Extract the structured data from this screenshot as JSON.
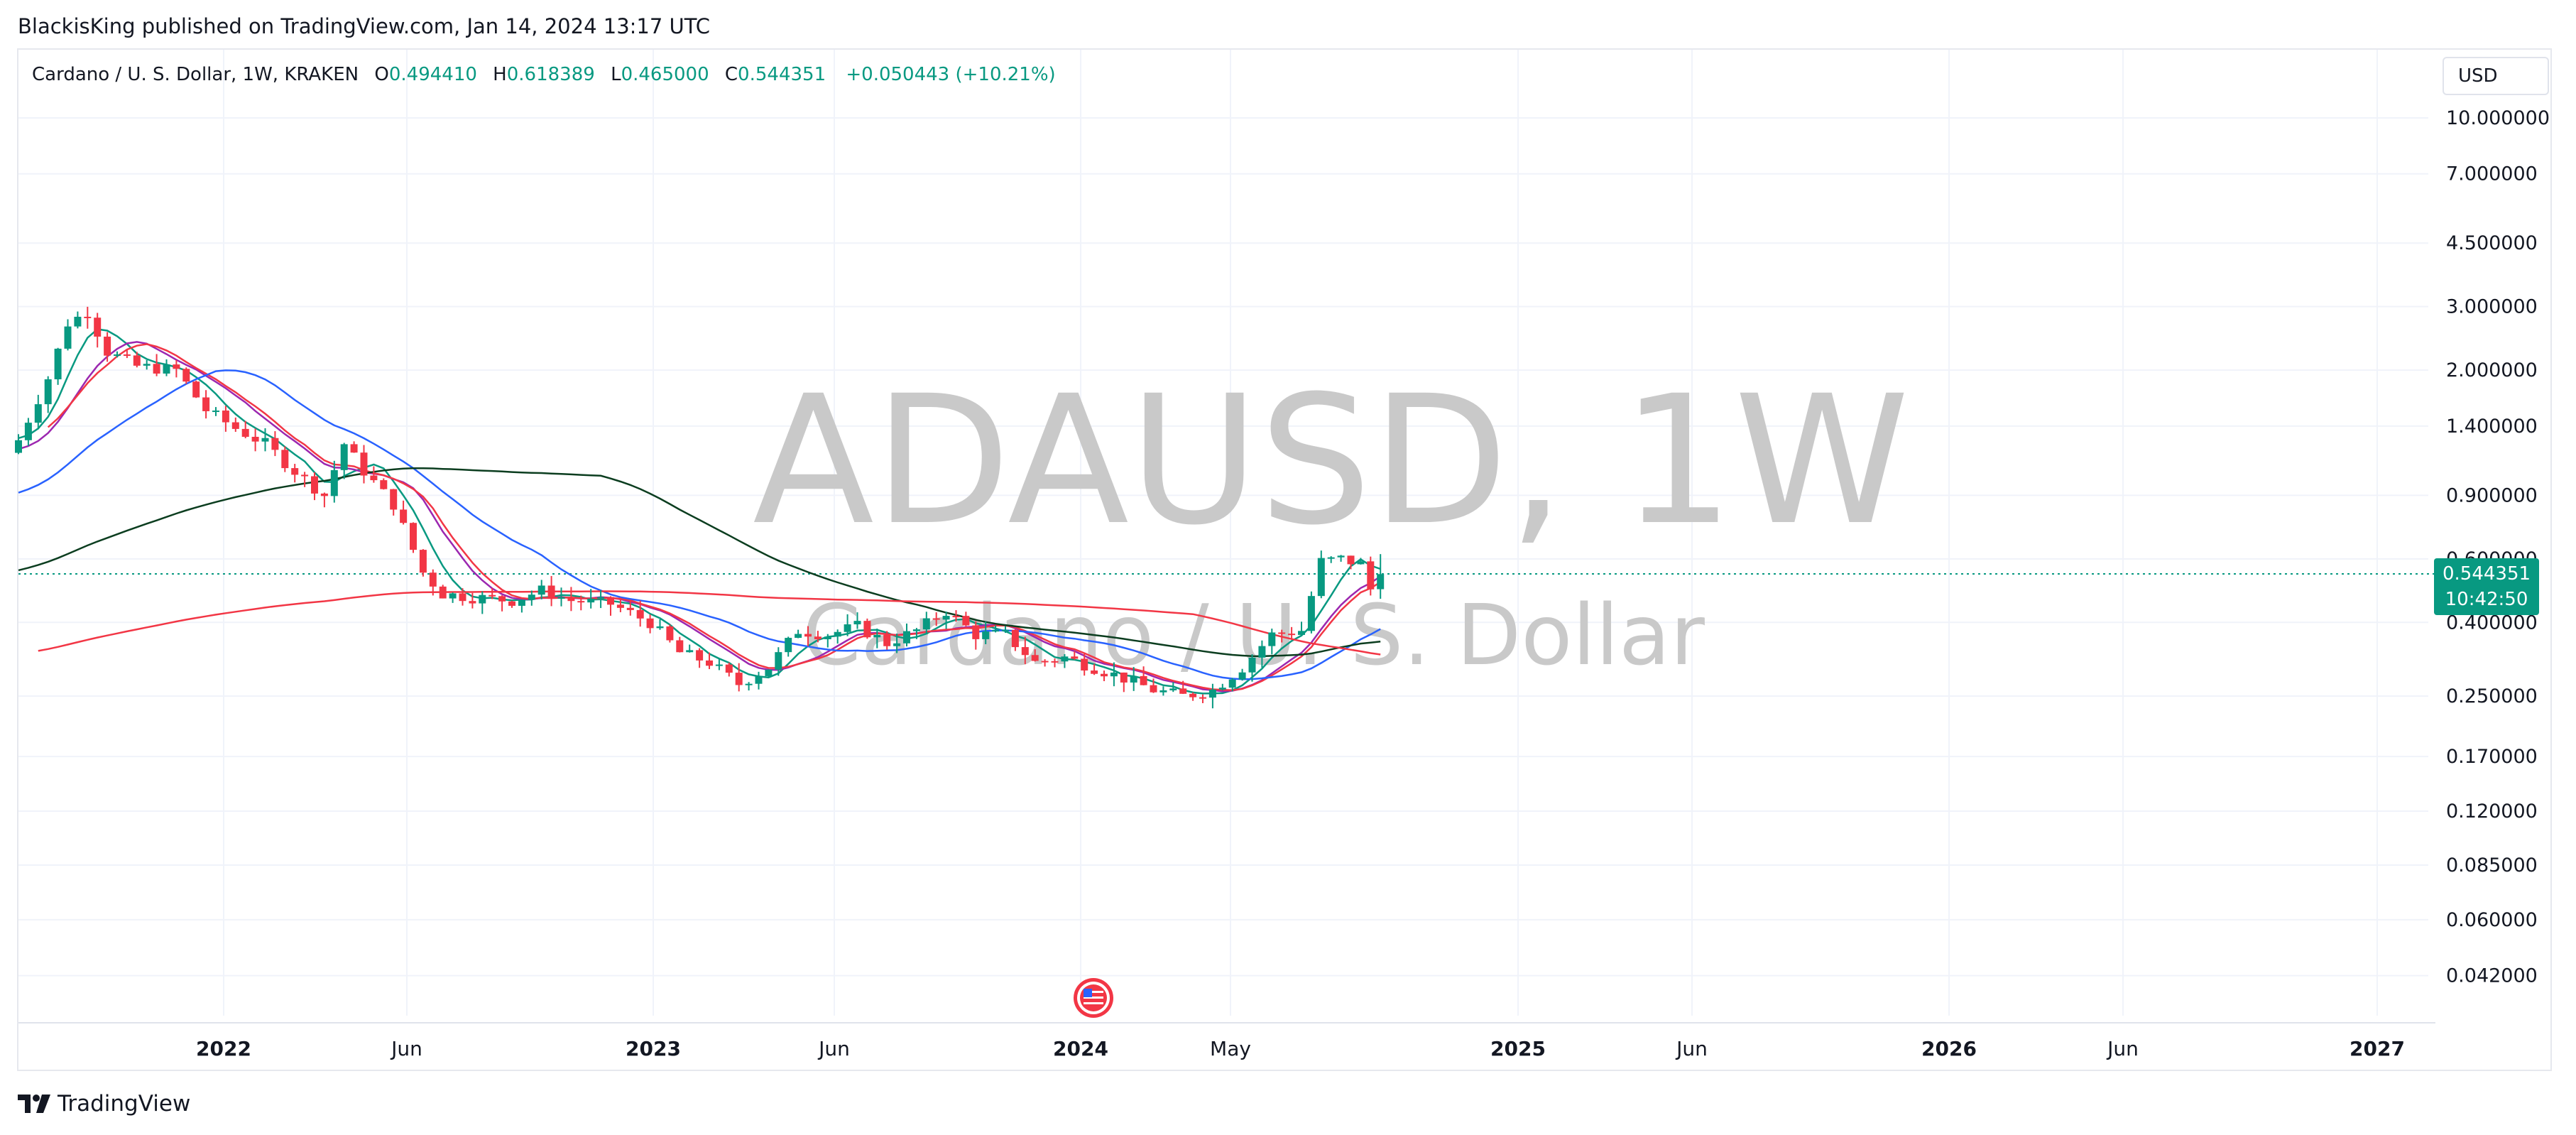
{
  "publisher_line": "BlackisKing published on TradingView.com, Jan 14, 2024 13:17 UTC",
  "legend": {
    "symbol": "Cardano / U. S. Dollar, 1W, KRAKEN",
    "open_label": "O",
    "open": "0.494410",
    "high_label": "H",
    "high": "0.618389",
    "low_label": "L",
    "low": "0.465000",
    "close_label": "C",
    "close": "0.544351",
    "change": "+0.050443 (+10.21%)"
  },
  "currency": "USD",
  "watermark": {
    "ticker": "ADAUSD, 1W",
    "name": "Cardano / U. S. Dollar"
  },
  "price_tag": {
    "price": "0.544351",
    "countdown": "10:42:50"
  },
  "footer_brand": "TradingView",
  "colors": {
    "up": "#089981",
    "down": "#f23645",
    "grid": "#f0f3fa",
    "ma_green": "#089981",
    "ma_red": "#f23645",
    "ma_blue": "#2962ff",
    "ma_purple": "#9c27b0",
    "ma_black": "#0b3d1f",
    "ma_long_red": "#f23645"
  },
  "chart_data": {
    "type": "candlestick",
    "scale": "log",
    "y_ticks": [
      "10.000000",
      "7.000000",
      "4.500000",
      "3.000000",
      "2.000000",
      "1.400000",
      "0.900000",
      "0.600000",
      "0.400000",
      "0.250000",
      "0.170000",
      "0.120000",
      "0.085000",
      "0.060000",
      "0.042000"
    ],
    "x_ticks": [
      "2022",
      "Jun",
      "2023",
      "Jun",
      "2024",
      "May",
      "2025",
      "Jun",
      "2026",
      "Jun",
      "2027"
    ],
    "bold_x_ticks": [
      "2022",
      "2023",
      "2024",
      "2025",
      "2026",
      "2027"
    ],
    "current_price": 0.544351,
    "ohlc_summary": {
      "start": "2021-08",
      "end": "2024-01-14",
      "last": {
        "o": 0.49441,
        "h": 0.618389,
        "l": 0.465,
        "c": 0.544351
      }
    },
    "key_closes": [
      [
        "2021-08",
        1.28
      ],
      [
        "2021-09",
        2.4
      ],
      [
        "2021-09-start",
        2.9
      ],
      [
        "2021-10",
        2.15
      ],
      [
        "2021-12",
        1.4
      ],
      [
        "2022-02",
        1.1
      ],
      [
        "2022-04",
        0.85
      ],
      [
        "2022-06",
        0.47
      ],
      [
        "2022-08",
        0.5
      ],
      [
        "2022-11",
        0.33
      ],
      [
        "2023-01",
        0.3
      ],
      [
        "2023-03",
        0.37
      ],
      [
        "2023-04",
        0.44
      ],
      [
        "2023-06",
        0.28
      ],
      [
        "2023-08",
        0.3
      ],
      [
        "2023-10",
        0.25
      ],
      [
        "2023-11",
        0.37
      ],
      [
        "2023-12",
        0.59
      ],
      [
        "2024-01",
        0.544
      ]
    ],
    "moving_averages": [
      {
        "color": "green"
      },
      {
        "color": "red"
      },
      {
        "color": "purple"
      },
      {
        "color": "blue"
      },
      {
        "color": "black"
      },
      {
        "color": "long-red"
      }
    ]
  }
}
